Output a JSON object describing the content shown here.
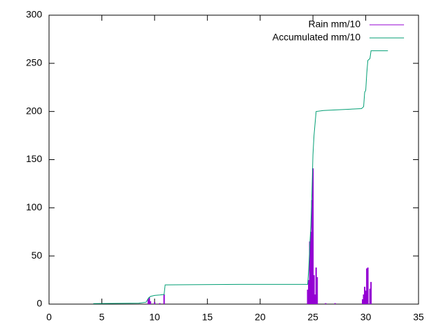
{
  "chart_data": {
    "type": "line",
    "series": [
      {
        "name": "Rain mm/10",
        "color": "#9400d3",
        "style": "impulses",
        "x": [
          9.4,
          9.5,
          9.6,
          10.0,
          10.5,
          10.9,
          24.5,
          24.6,
          24.7,
          24.8,
          24.9,
          25.0,
          25.1,
          25.2,
          25.3,
          25.4,
          26.2,
          27.1,
          29.7,
          29.8,
          29.9,
          30.0,
          30.1,
          30.2,
          30.4,
          30.5
        ],
        "values": [
          5,
          7,
          3,
          2,
          1,
          10,
          15,
          25,
          65,
          75,
          108,
          141,
          30,
          10,
          38,
          28,
          1,
          1,
          5,
          10,
          18,
          14,
          37,
          38,
          16,
          23
        ]
      },
      {
        "name": "Accumulated mm/10",
        "color": "#009e73",
        "style": "lines",
        "x": [
          4.2,
          8.5,
          9.2,
          9.4,
          9.5,
          9.6,
          10.0,
          10.5,
          10.9,
          11.0,
          18.0,
          24.5,
          24.6,
          24.7,
          24.8,
          24.9,
          25.0,
          25.1,
          25.3,
          26.0,
          29.6,
          29.8,
          29.9,
          30.0,
          30.1,
          30.2,
          30.4,
          30.5,
          32.1
        ],
        "values": [
          0.5,
          1,
          2,
          6,
          7,
          8,
          9,
          9.5,
          10,
          20,
          20.5,
          20.5,
          36,
          61,
          81,
          115,
          155,
          175,
          200,
          201,
          203,
          205,
          220,
          222,
          240,
          253,
          255,
          263,
          263
        ]
      }
    ],
    "xlim": [
      0,
      35
    ],
    "xticks": [
      0,
      5,
      10,
      15,
      20,
      25,
      30,
      35
    ],
    "ylim": [
      0,
      300
    ],
    "yticks": [
      0,
      50,
      100,
      150,
      200,
      250,
      300
    ],
    "grid": false,
    "legend": "top-right"
  }
}
